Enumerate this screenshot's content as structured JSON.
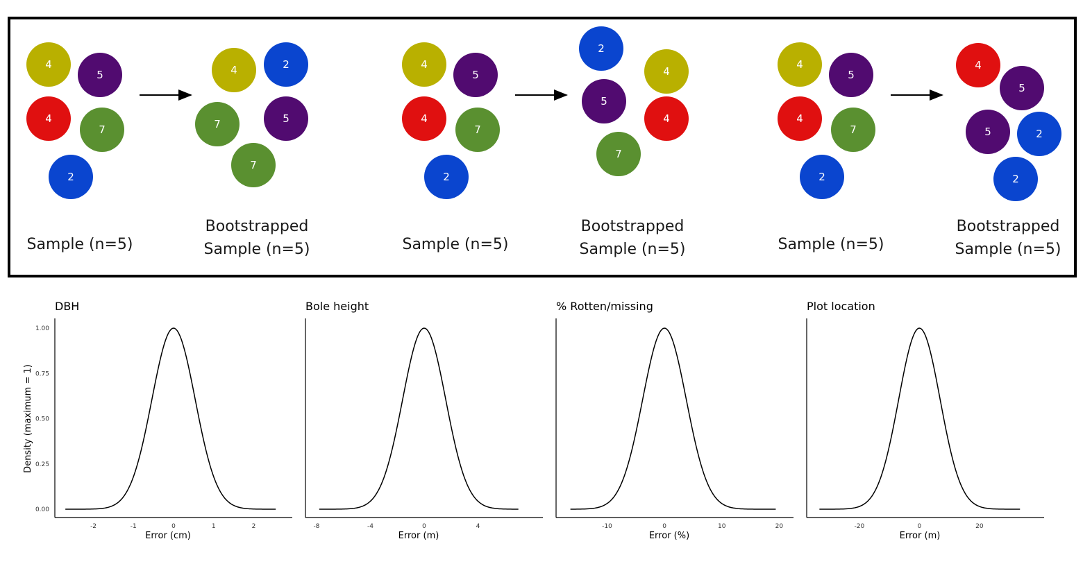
{
  "colors": {
    "yellow": "#b9b000",
    "purple": "#510b70",
    "red": "#e01010",
    "green": "#5a9030",
    "blue": "#0a45cf"
  },
  "bootstrap": {
    "groups": [
      {
        "original": {
          "caption": "Sample (n=5)",
          "balls": [
            {
              "value": "4",
              "color": "yellow"
            },
            {
              "value": "5",
              "color": "purple"
            },
            {
              "value": "4",
              "color": "red"
            },
            {
              "value": "7",
              "color": "green"
            },
            {
              "value": "2",
              "color": "blue"
            }
          ]
        },
        "arrow": "right-arrow",
        "resampled": {
          "caption_line1": "Bootstrapped",
          "caption_line2": "Sample (n=5)",
          "balls": [
            {
              "value": "4",
              "color": "yellow"
            },
            {
              "value": "2",
              "color": "blue"
            },
            {
              "value": "7",
              "color": "green"
            },
            {
              "value": "5",
              "color": "purple"
            },
            {
              "value": "7",
              "color": "green"
            }
          ]
        }
      },
      {
        "original": {
          "caption": "Sample (n=5)",
          "balls": [
            {
              "value": "4",
              "color": "yellow"
            },
            {
              "value": "5",
              "color": "purple"
            },
            {
              "value": "4",
              "color": "red"
            },
            {
              "value": "7",
              "color": "green"
            },
            {
              "value": "2",
              "color": "blue"
            }
          ]
        },
        "arrow": "right-arrow",
        "resampled": {
          "caption_line1": "Bootstrapped",
          "caption_line2": "Sample (n=5)",
          "balls": [
            {
              "value": "2",
              "color": "blue"
            },
            {
              "value": "4",
              "color": "yellow"
            },
            {
              "value": "5",
              "color": "purple"
            },
            {
              "value": "4",
              "color": "red"
            },
            {
              "value": "7",
              "color": "green"
            }
          ]
        }
      },
      {
        "original": {
          "caption": "Sample (n=5)",
          "balls": [
            {
              "value": "4",
              "color": "yellow"
            },
            {
              "value": "5",
              "color": "purple"
            },
            {
              "value": "4",
              "color": "red"
            },
            {
              "value": "7",
              "color": "green"
            },
            {
              "value": "2",
              "color": "blue"
            }
          ]
        },
        "arrow": "right-arrow",
        "resampled": {
          "caption_line1": "Bootstrapped",
          "caption_line2": "Sample (n=5)",
          "balls": [
            {
              "value": "4",
              "color": "red"
            },
            {
              "value": "5",
              "color": "purple"
            },
            {
              "value": "5",
              "color": "purple"
            },
            {
              "value": "2",
              "color": "blue"
            },
            {
              "value": "2",
              "color": "blue"
            }
          ]
        }
      }
    ]
  },
  "chart_data": [
    {
      "type": "line",
      "title": "DBH",
      "xlabel": "Error (cm)",
      "ylabel": "Density (maximum = 1)",
      "xlim": [
        -2.72,
        2.72
      ],
      "ylim": [
        0,
        1
      ],
      "xticks": [
        -2,
        -1,
        0,
        1,
        2
      ],
      "yticks": [
        "0.00",
        "0.25",
        "0.50",
        "0.75",
        "1.00"
      ],
      "sd": 0.54,
      "x_min": -2.7,
      "x_max": 2.55,
      "series": [
        {
          "name": "density",
          "shape": "normal",
          "mean": 0
        }
      ]
    },
    {
      "type": "line",
      "title": "Bole height",
      "xlabel": "Error (m)",
      "ylabel": "",
      "xlim": [
        -8.1,
        8.1
      ],
      "ylim": [
        0,
        1
      ],
      "xticks": [
        -8,
        -4,
        0,
        4
      ],
      "yticks": [],
      "sd": 1.6,
      "x_min": -7.8,
      "x_max": 7.0,
      "series": [
        {
          "name": "density",
          "shape": "normal",
          "mean": 0
        }
      ]
    },
    {
      "type": "line",
      "title": "% Rotten/missing",
      "xlabel": "Error (%)",
      "ylabel": "",
      "xlim": [
        -17.2,
        20.8
      ],
      "ylim": [
        0,
        1
      ],
      "xticks": [
        -10,
        0,
        10,
        20
      ],
      "yticks": [],
      "sd": 3.8,
      "x_min": -16.4,
      "x_max": 19.4,
      "series": [
        {
          "name": "density",
          "shape": "normal",
          "mean": 0
        }
      ]
    },
    {
      "type": "line",
      "title": "Plot location",
      "xlabel": "Error (m)",
      "ylabel": "",
      "xlim": [
        -34.3,
        38.3
      ],
      "ylim": [
        0,
        1
      ],
      "xticks": [
        -20,
        0,
        20
      ],
      "yticks": [],
      "sd": 6.9,
      "x_min": -33.3,
      "x_max": 33.5,
      "series": [
        {
          "name": "density",
          "shape": "normal",
          "mean": 0
        }
      ]
    }
  ]
}
